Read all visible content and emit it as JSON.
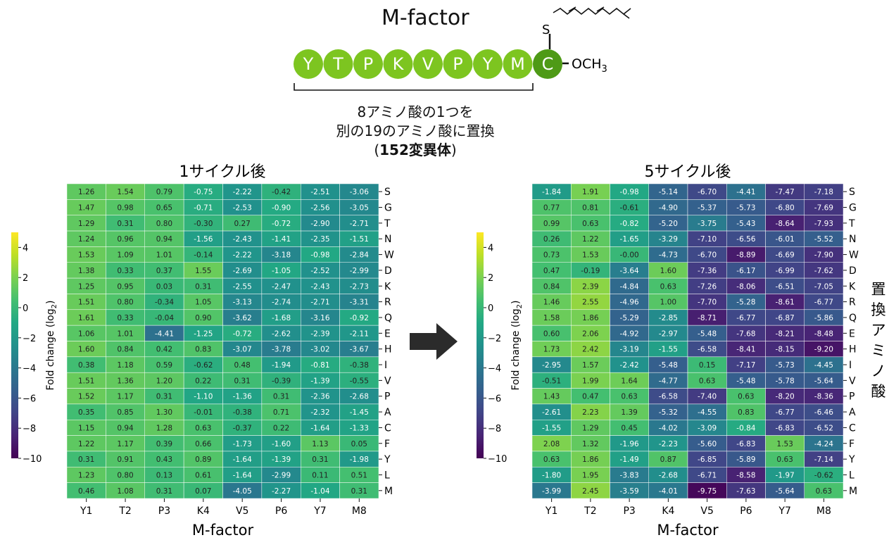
{
  "header": {
    "title": "M-factor",
    "peptide": [
      "Y",
      "T",
      "P",
      "K",
      "V",
      "P",
      "Y",
      "M",
      "C"
    ],
    "s_label": "S",
    "och3_label": "OCH3",
    "caption_line1": "8アミノ酸の1つを",
    "caption_line2": "別の19のアミノ酸に置換",
    "caption_line3_pre": "(",
    "caption_line3_num": "152変異体",
    "caption_line3_post": ")"
  },
  "colors": {
    "peptide_circle": "#7dc520",
    "peptide_last": "#4e9a16",
    "arrow": "#2b2b2b"
  },
  "chart_data": [
    {
      "type": "heatmap",
      "title": "1サイクル後",
      "xlabel": "M-factor",
      "ylabel": "Fold change (log2)",
      "colormap": "viridis",
      "vmin": -10,
      "vmax": 5,
      "colorbar_ticks": [
        4,
        2,
        0,
        -2,
        -4,
        -6,
        -8,
        -10
      ],
      "colorbar_tick_labels": [
        "4",
        "2",
        "0",
        "−2",
        "−4",
        "−6",
        "−8",
        "−10"
      ],
      "x_categories": [
        "Y1",
        "T2",
        "P3",
        "K4",
        "V5",
        "P6",
        "Y7",
        "M8"
      ],
      "y_categories": [
        "S",
        "G",
        "T",
        "N",
        "W",
        "D",
        "K",
        "R",
        "Q",
        "E",
        "H",
        "I",
        "V",
        "P",
        "A",
        "C",
        "F",
        "Y",
        "L",
        "M"
      ],
      "values": [
        [
          "1.26",
          "1.54",
          "0.79",
          "-0.75",
          "-2.22",
          "-0.42",
          "-2.51",
          "-3.06"
        ],
        [
          "1.47",
          "0.98",
          "0.65",
          "-0.71",
          "-2.53",
          "-0.90",
          "-2.56",
          "-3.05"
        ],
        [
          "1.29",
          "0.31",
          "0.80",
          "-0.30",
          "0.27",
          "-0.72",
          "-2.90",
          "-2.71"
        ],
        [
          "1.24",
          "0.96",
          "0.94",
          "-1.56",
          "-2.43",
          "-1.41",
          "-2.35",
          "-1.51"
        ],
        [
          "1.53",
          "1.09",
          "1.01",
          "-0.14",
          "-2.22",
          "-3.18",
          "-0.98",
          "-2.84"
        ],
        [
          "1.38",
          "0.33",
          "0.37",
          "1.55",
          "-2.69",
          "-1.05",
          "-2.52",
          "-2.99"
        ],
        [
          "1.25",
          "0.95",
          "0.03",
          "0.31",
          "-2.55",
          "-2.47",
          "-2.43",
          "-2.73"
        ],
        [
          "1.51",
          "0.80",
          "-0.34",
          "1.05",
          "-3.13",
          "-2.74",
          "-2.71",
          "-3.31"
        ],
        [
          "1.61",
          "0.33",
          "-0.04",
          "0.90",
          "-3.62",
          "-1.68",
          "-3.16",
          "-0.92"
        ],
        [
          "1.06",
          "1.01",
          "-4.41",
          "-1.25",
          "-0.72",
          "-2.62",
          "-2.39",
          "-2.11"
        ],
        [
          "1.60",
          "0.84",
          "0.42",
          "0.83",
          "-3.07",
          "-3.78",
          "-3.02",
          "-3.67"
        ],
        [
          "0.38",
          "1.18",
          "0.59",
          "-0.62",
          "0.48",
          "-1.94",
          "-0.81",
          "-0.38"
        ],
        [
          "1.51",
          "1.36",
          "1.20",
          "0.22",
          "0.31",
          "-0.39",
          "-1.39",
          "-0.55"
        ],
        [
          "1.52",
          "1.17",
          "0.31",
          "-1.10",
          "-1.36",
          "0.31",
          "-2.36",
          "-2.68"
        ],
        [
          "0.35",
          "0.85",
          "1.30",
          "-0.01",
          "-0.38",
          "0.71",
          "-2.32",
          "-1.45"
        ],
        [
          "1.15",
          "0.94",
          "1.28",
          "0.63",
          "-0.37",
          "0.22",
          "-1.64",
          "-1.33"
        ],
        [
          "1.22",
          "1.17",
          "0.39",
          "0.66",
          "-1.73",
          "-1.60",
          "1.13",
          "0.05"
        ],
        [
          "0.31",
          "0.91",
          "0.43",
          "0.89",
          "-1.64",
          "-1.39",
          "0.31",
          "-1.98"
        ],
        [
          "1.23",
          "0.80",
          "0.13",
          "0.61",
          "-1.64",
          "-2.99",
          "0.11",
          "0.51"
        ],
        [
          "0.46",
          "1.08",
          "0.31",
          "0.07",
          "-4.05",
          "-2.27",
          "-1.04",
          "0.31"
        ]
      ]
    },
    {
      "type": "heatmap",
      "title": "5サイクル後",
      "xlabel": "M-factor",
      "ylabel": "Fold change (log2)",
      "y_side_label": "置換アミノ酸",
      "colormap": "viridis",
      "vmin": -10,
      "vmax": 5,
      "colorbar_ticks": [
        4,
        2,
        0,
        -2,
        -4,
        -6,
        -8,
        -10
      ],
      "colorbar_tick_labels": [
        "4",
        "2",
        "0",
        "−2",
        "−4",
        "−6",
        "−8",
        "−10"
      ],
      "x_categories": [
        "Y1",
        "T2",
        "P3",
        "K4",
        "V5",
        "P6",
        "Y7",
        "M8"
      ],
      "y_categories": [
        "S",
        "G",
        "T",
        "N",
        "W",
        "D",
        "K",
        "R",
        "Q",
        "E",
        "H",
        "I",
        "V",
        "P",
        "A",
        "C",
        "F",
        "Y",
        "L",
        "M"
      ],
      "values": [
        [
          "-1.84",
          "1.91",
          "-0.98",
          "-5.14",
          "-6.70",
          "-4.41",
          "-7.47",
          "-7.18"
        ],
        [
          "0.77",
          "0.81",
          "-0.61",
          "-4.90",
          "-5.37",
          "-5.73",
          "-6.80",
          "-7.69"
        ],
        [
          "0.99",
          "0.63",
          "-0.82",
          "-5.20",
          "-3.75",
          "-5.43",
          "-8.64",
          "-7.93"
        ],
        [
          "0.26",
          "1.22",
          "-1.65",
          "-3.29",
          "-7.10",
          "-6.56",
          "-6.01",
          "-5.52"
        ],
        [
          "0.73",
          "1.53",
          "-0.00",
          "-4.73",
          "-6.70",
          "-8.89",
          "-6.69",
          "-7.90"
        ],
        [
          "0.47",
          "-0.19",
          "-3.64",
          "1.60",
          "-7.36",
          "-6.17",
          "-6.99",
          "-7.62"
        ],
        [
          "0.84",
          "2.39",
          "-4.84",
          "0.63",
          "-7.26",
          "-8.06",
          "-6.51",
          "-7.05"
        ],
        [
          "1.46",
          "2.55",
          "-4.96",
          "1.00",
          "-7.70",
          "-5.28",
          "-8.61",
          "-6.77"
        ],
        [
          "1.58",
          "1.86",
          "-5.29",
          "-2.85",
          "-8.71",
          "-6.77",
          "-6.87",
          "-5.86"
        ],
        [
          "0.60",
          "2.06",
          "-4.92",
          "-2.97",
          "-5.48",
          "-7.68",
          "-8.21",
          "-8.48"
        ],
        [
          "1.73",
          "2.42",
          "-3.19",
          "-1.55",
          "-6.58",
          "-8.41",
          "-8.15",
          "-9.20"
        ],
        [
          "-2.95",
          "1.57",
          "-2.42",
          "-5.48",
          "0.15",
          "-7.17",
          "-5.73",
          "-4.45"
        ],
        [
          "-0.51",
          "1.99",
          "1.64",
          "-4.77",
          "0.63",
          "-5.48",
          "-5.78",
          "-5.64"
        ],
        [
          "1.43",
          "0.47",
          "0.63",
          "-6.58",
          "-7.40",
          "0.63",
          "-8.20",
          "-8.36"
        ],
        [
          "-2.61",
          "2.23",
          "1.39",
          "-5.32",
          "-4.55",
          "0.83",
          "-6.77",
          "-6.46"
        ],
        [
          "-1.55",
          "1.29",
          "0.45",
          "-4.02",
          "-3.09",
          "-0.84",
          "-6.83",
          "-6.52"
        ],
        [
          "2.08",
          "1.32",
          "-1.96",
          "-2.23",
          "-5.60",
          "-6.83",
          "1.53",
          "-4.24"
        ],
        [
          "0.63",
          "1.86",
          "-1.49",
          "0.87",
          "-6.85",
          "-5.89",
          "0.63",
          "-7.14"
        ],
        [
          "-1.80",
          "1.95",
          "-3.83",
          "-2.68",
          "-6.71",
          "-8.58",
          "-1.97",
          "-0.62"
        ],
        [
          "-3.99",
          "2.45",
          "-3.59",
          "-4.01",
          "-9.75",
          "-7.63",
          "-5.64",
          "0.63"
        ]
      ]
    }
  ]
}
